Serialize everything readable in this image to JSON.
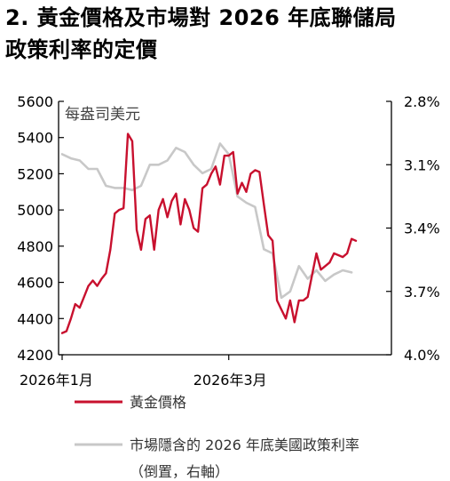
{
  "title_lines": [
    "2. 黃金價格及市場對 2026 年底聯儲局",
    "政策利率的定價"
  ],
  "colors": {
    "gold": "#c8102e",
    "rate": "#c8c8c8",
    "axis": "#000000"
  },
  "chart_data": {
    "type": "line",
    "title": "2. 黃金價格及市場對 2026 年底聯儲局政策利率的定價",
    "unit_label": "每盎司美元",
    "x_range": [
      0,
      67
    ],
    "x_ticks": [
      {
        "x": 0,
        "label": "2026年1月"
      },
      {
        "x": 38,
        "label": "2026年3月"
      }
    ],
    "y_left": {
      "min": 4200,
      "max": 5600,
      "ticks": [
        4200,
        4400,
        4600,
        4800,
        5000,
        5200,
        5400,
        5600
      ]
    },
    "y_right": {
      "min": 2.8,
      "max": 4.0,
      "inverted": true,
      "ticks": [
        "2.8%",
        "3.1%",
        "3.4%",
        "3.7%",
        "4.0%"
      ]
    },
    "series": [
      {
        "name": "黃金價格",
        "axis": "left",
        "color": "#c8102e",
        "x": [
          0,
          1,
          2,
          3,
          4,
          5,
          6,
          7,
          8,
          9,
          10,
          11,
          12,
          13,
          14,
          15,
          16,
          17,
          18,
          19,
          20,
          21,
          22,
          23,
          24,
          25,
          26,
          27,
          28,
          29,
          30,
          31,
          32,
          33,
          34,
          35,
          36,
          37,
          38,
          39,
          40,
          41,
          42,
          43,
          44,
          45,
          46,
          47,
          48,
          49,
          50,
          51,
          52,
          53,
          54,
          55,
          56,
          57,
          58,
          59,
          60,
          61,
          62,
          63,
          64,
          65,
          66,
          67
        ],
        "values": [
          4320,
          4330,
          4400,
          4480,
          4460,
          4520,
          4580,
          4610,
          4580,
          4620,
          4650,
          4780,
          4980,
          5000,
          5010,
          5420,
          5380,
          4890,
          4780,
          4950,
          4970,
          4780,
          5000,
          5060,
          4960,
          5050,
          5090,
          4920,
          5060,
          5000,
          4900,
          4880,
          5120,
          5140,
          5200,
          5240,
          5140,
          5300,
          5300,
          5320,
          5090,
          5150,
          5100,
          5200,
          5220,
          5210,
          5030,
          4860,
          4830,
          4500,
          4450,
          4400,
          4500,
          4380,
          4500,
          4500,
          4520,
          4640,
          4760,
          4670,
          4690,
          4710,
          4760,
          4750,
          4740,
          4760,
          4840,
          4830
        ]
      },
      {
        "name": "市場隱含的 2026 年底美國政策利率",
        "note": "（倒置，右軸）",
        "axis": "right",
        "color": "#c8c8c8",
        "x": [
          0,
          2,
          4,
          6,
          8,
          10,
          12,
          14,
          16,
          18,
          20,
          22,
          24,
          26,
          28,
          30,
          32,
          34,
          36,
          38,
          40,
          42,
          44,
          46,
          48,
          50,
          52,
          54,
          56,
          58,
          60,
          62,
          64,
          66
        ],
        "values": [
          3.05,
          3.07,
          3.08,
          3.12,
          3.12,
          3.2,
          3.21,
          3.21,
          3.22,
          3.2,
          3.1,
          3.1,
          3.08,
          3.02,
          3.04,
          3.1,
          3.14,
          3.12,
          3.0,
          3.05,
          3.25,
          3.28,
          3.3,
          3.5,
          3.52,
          3.73,
          3.7,
          3.58,
          3.64,
          3.6,
          3.65,
          3.62,
          3.6,
          3.61
        ]
      }
    ],
    "legend": [
      {
        "label": "黃金價格",
        "color": "#c8102e"
      },
      {
        "label": "市場隱含的 2026 年底美國政策利率",
        "color": "#c8c8c8"
      },
      {
        "label": "（倒置，右軸）"
      }
    ]
  }
}
